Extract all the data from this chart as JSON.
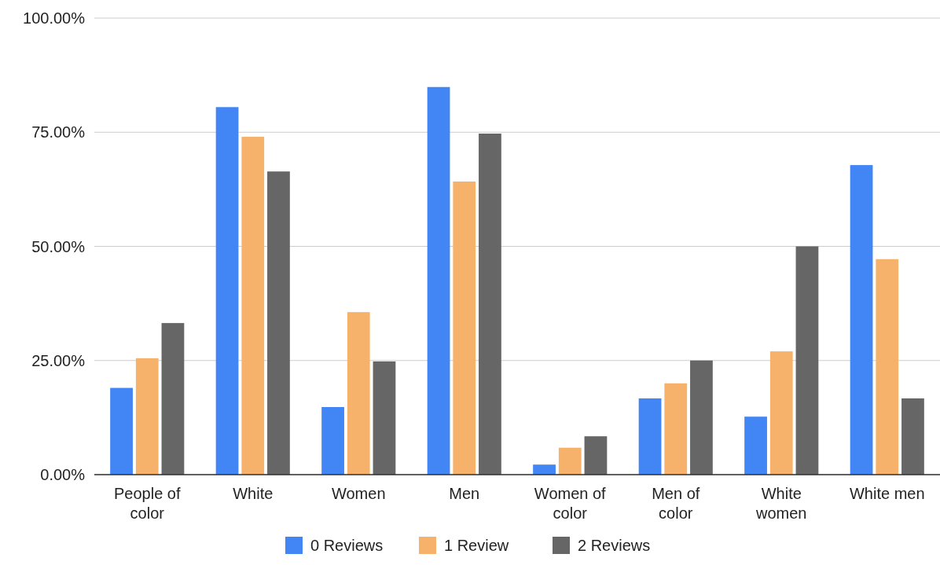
{
  "chart_data": {
    "type": "bar",
    "categories": [
      "People of color",
      "White",
      "Women",
      "Men",
      "Women of color",
      "Men of color",
      "White women",
      "White men"
    ],
    "series": [
      {
        "name": "0 Reviews",
        "color": "#4285f4",
        "values": [
          19,
          80.5,
          14.8,
          84.9,
          2.2,
          16.7,
          12.7,
          67.8
        ]
      },
      {
        "name": "1 Review",
        "color": "#f6b26b",
        "values": [
          25.5,
          74,
          35.6,
          64.2,
          5.9,
          20,
          27,
          47.2
        ]
      },
      {
        "name": "2 Reviews",
        "color": "#666666",
        "values": [
          33.2,
          66.4,
          24.8,
          74.7,
          8.4,
          25,
          50,
          16.7
        ]
      }
    ],
    "ylim": [
      0,
      100
    ],
    "yticks": [
      {
        "value": 0,
        "label": "0.00%"
      },
      {
        "value": 25,
        "label": "25.00%"
      },
      {
        "value": 50,
        "label": "50.00%"
      },
      {
        "value": 75,
        "label": "75.00%"
      },
      {
        "value": 100,
        "label": "100.00%"
      }
    ],
    "grid": "y",
    "legend": "bottom"
  }
}
